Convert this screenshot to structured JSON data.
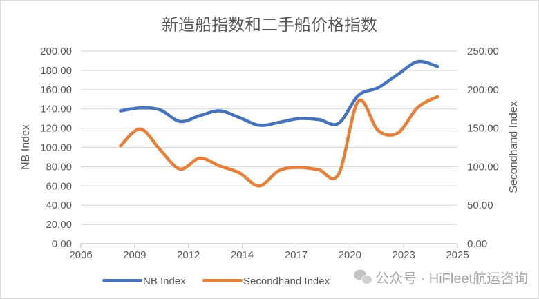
{
  "chart_data": {
    "type": "line",
    "title": "新造船指数和二手船价格指数",
    "x": [
      2008,
      2009,
      2010,
      2011,
      2012,
      2013,
      2014,
      2015,
      2016,
      2017,
      2018,
      2019,
      2020,
      2021,
      2022,
      2023,
      2024
    ],
    "x_ticks": [
      "2006",
      "2009",
      "2012",
      "2014",
      "2017",
      "2020",
      "2023",
      "2025"
    ],
    "xlim": [
      2006,
      2025
    ],
    "ylabel": "NB Index",
    "ylim": [
      0,
      200
    ],
    "y_ticks": [
      "0.00",
      "20.00",
      "40.00",
      "60.00",
      "80.00",
      "100.00",
      "120.00",
      "140.00",
      "160.00",
      "180.00",
      "200.00"
    ],
    "y2label": "Secondhand Index",
    "y2lim": [
      0,
      250
    ],
    "y2_ticks": [
      "0.00",
      "50.00",
      "100.00",
      "150.00",
      "200.00",
      "250.00"
    ],
    "grid": true,
    "legend": "bottom",
    "series": [
      {
        "name": "NB Index",
        "axis": "left",
        "color": "#4472C4",
        "values": [
          138,
          141,
          139,
          127,
          133,
          138,
          131,
          123,
          126,
          130,
          129,
          125,
          154,
          162,
          176,
          189,
          184
        ]
      },
      {
        "name": "Secondhand Index",
        "axis": "right",
        "color": "#ED7D31",
        "values": [
          127,
          149,
          122,
          97,
          111,
          101,
          92,
          75,
          95,
          99,
          96,
          90,
          185,
          147,
          144,
          177,
          191
        ]
      }
    ]
  },
  "watermark": "公众号 · HiFleet航运咨询"
}
